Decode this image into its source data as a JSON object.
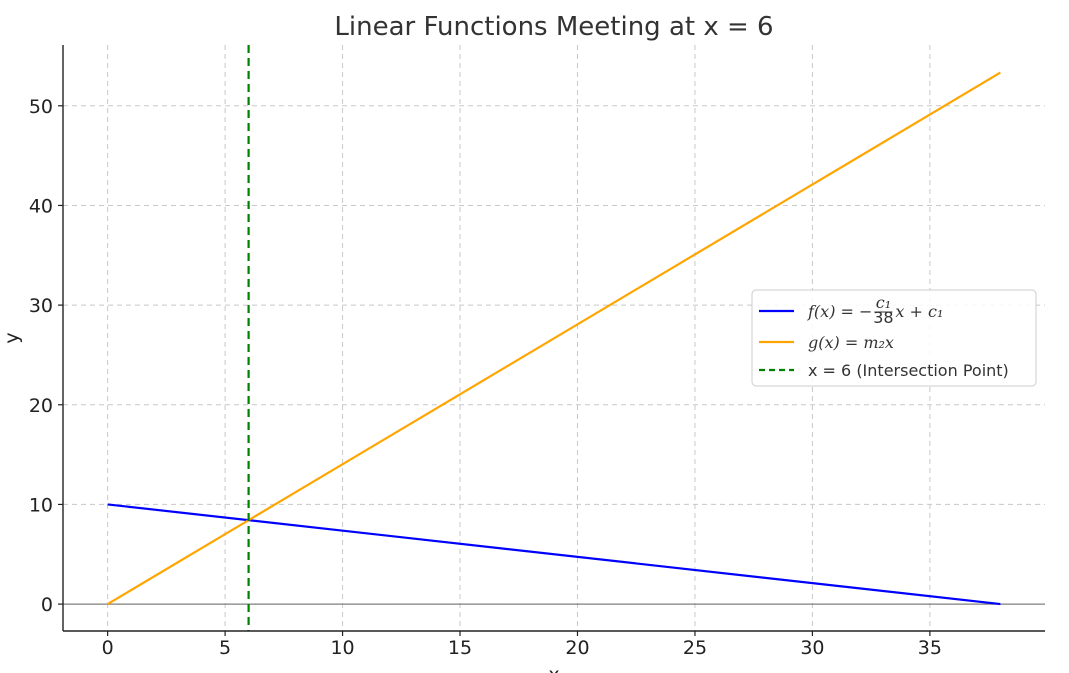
{
  "chart_data": {
    "type": "line",
    "title": "Linear Functions Meeting at x = 6",
    "xlabel": "x",
    "ylabel": "y",
    "xlim": [
      -1.9,
      39.9
    ],
    "ylim": [
      -2.7,
      56.1
    ],
    "xticks": [
      0,
      5,
      10,
      15,
      20,
      25,
      30,
      35
    ],
    "yticks": [
      0,
      10,
      20,
      30,
      40,
      50
    ],
    "grid": true,
    "legend_position": "center-right",
    "series": [
      {
        "name": "f(x) = −(c₁/38)x + c₁",
        "legend_parts": {
          "lhs": "f(x) = −",
          "num": "c₁",
          "den": "38",
          "rhs": "x + c₁"
        },
        "color": "#0000ff",
        "style": "solid",
        "x": [
          0,
          38
        ],
        "y": [
          10,
          0
        ]
      },
      {
        "name": "g(x) = m₂x",
        "color": "#ffa500",
        "style": "solid",
        "x": [
          0,
          38
        ],
        "y": [
          0,
          53.33
        ]
      },
      {
        "name": "x = 6 (Intersection Point)",
        "color": "#008000",
        "style": "dashed",
        "vertical_line_x": 6
      }
    ],
    "reference_lines": [
      {
        "type": "horizontal",
        "y": 0,
        "color": "#808080"
      }
    ]
  }
}
